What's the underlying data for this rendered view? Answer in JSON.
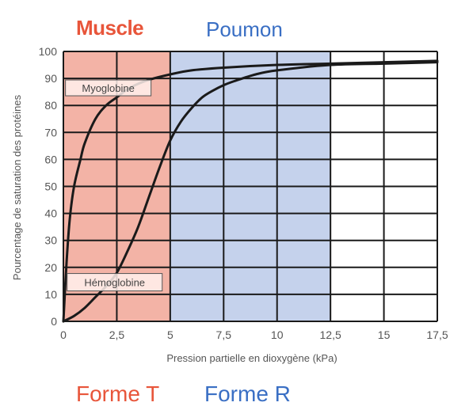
{
  "zones": {
    "muscle": "Muscle",
    "poumon": "Poumon",
    "forme_t": "Forme T",
    "forme_r": "Forme R",
    "muscle_color": "#f3b3a6",
    "poumon_color": "#c5d2ec",
    "muscle_text_color": "#e8553a",
    "poumon_text_color": "#3a6fc4"
  },
  "chart_data": {
    "type": "line",
    "xlabel": "Pression partielle en dioxygène (kPa)",
    "ylabel": "Pourcentage de saturation des protéines",
    "xlim": [
      0,
      17.5
    ],
    "ylim": [
      0,
      100
    ],
    "xticks": [
      "0",
      "2,5",
      "5",
      "7,5",
      "10",
      "12,5",
      "15",
      "17,5"
    ],
    "yticks": [
      "0",
      "10",
      "20",
      "30",
      "40",
      "50",
      "60",
      "70",
      "80",
      "90",
      "100"
    ],
    "grid": true,
    "shaded_regions": [
      {
        "zone": "muscle",
        "x": [
          0,
          5
        ]
      },
      {
        "zone": "poumon",
        "x": [
          5,
          12.5
        ]
      }
    ],
    "series": [
      {
        "name": "Myoglobine",
        "label_text": "Myoglobine",
        "x": [
          0,
          0.15,
          0.3,
          0.5,
          0.8,
          1,
          1.5,
          2,
          2.5,
          3,
          3.5,
          4,
          5,
          6,
          7.5,
          10,
          12.5,
          15,
          17.5
        ],
        "y": [
          0,
          22,
          38,
          50,
          60,
          66,
          75,
          80,
          83,
          86,
          88,
          89.5,
          91.5,
          93,
          94,
          95,
          95.5,
          96,
          96.5
        ]
      },
      {
        "name": "Hémoglobine",
        "label_text": "Hémoglobine",
        "x": [
          0,
          0.5,
          1,
          1.5,
          2,
          2.5,
          3,
          3.5,
          4,
          4.5,
          5,
          5.5,
          6,
          6.5,
          7,
          7.5,
          8,
          9,
          10,
          12.5,
          15,
          17.5
        ],
        "y": [
          0,
          2,
          5,
          9,
          13,
          18,
          26,
          35,
          46,
          57,
          67,
          74,
          79,
          83,
          85.5,
          87.5,
          89,
          91.5,
          93,
          95,
          95.5,
          96
        ]
      }
    ]
  }
}
